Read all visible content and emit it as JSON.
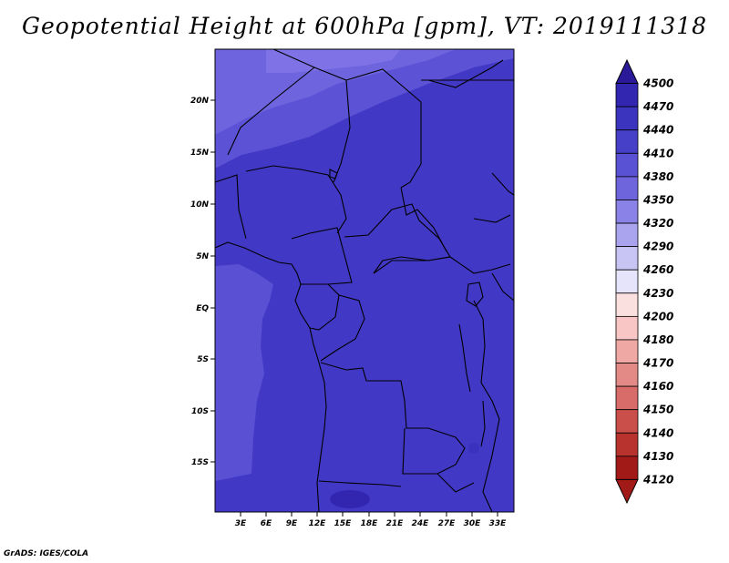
{
  "title": "Geopotential Height at 600hPa [gpm], VT: 2019111318",
  "credit": "GrADS: IGES/COLA",
  "map": {
    "lon_labels": [
      "3E",
      "6E",
      "9E",
      "12E",
      "15E",
      "18E",
      "21E",
      "24E",
      "27E",
      "30E",
      "33E"
    ],
    "lat_labels": [
      "20N",
      "15N",
      "10N",
      "5N",
      "EQ",
      "5S",
      "10S",
      "15S"
    ]
  },
  "colorbar": {
    "levels": [
      "4500",
      "4470",
      "4440",
      "4410",
      "4380",
      "4350",
      "4320",
      "4290",
      "4260",
      "4230",
      "4200",
      "4180",
      "4170",
      "4160",
      "4150",
      "4140",
      "4130",
      "4120"
    ],
    "colors": [
      "#2a1a9a",
      "#3226b0",
      "#3a34be",
      "#4640c8",
      "#5a52d4",
      "#6e64dc",
      "#8a82e6",
      "#aaa4ee",
      "#c8c4f4",
      "#e6e4fa",
      "#fbe0e0",
      "#f8c6c4",
      "#f0a8a4",
      "#e48a86",
      "#d86c68",
      "#ca4e4a",
      "#b8322e",
      "#a21a18"
    ]
  },
  "field_colors": {
    "base": "#4238c6",
    "high_band": "#5c52d6",
    "top_band": "#6e64de",
    "top_max": "#7e72e6",
    "sea_band": "#5a50d4"
  }
}
